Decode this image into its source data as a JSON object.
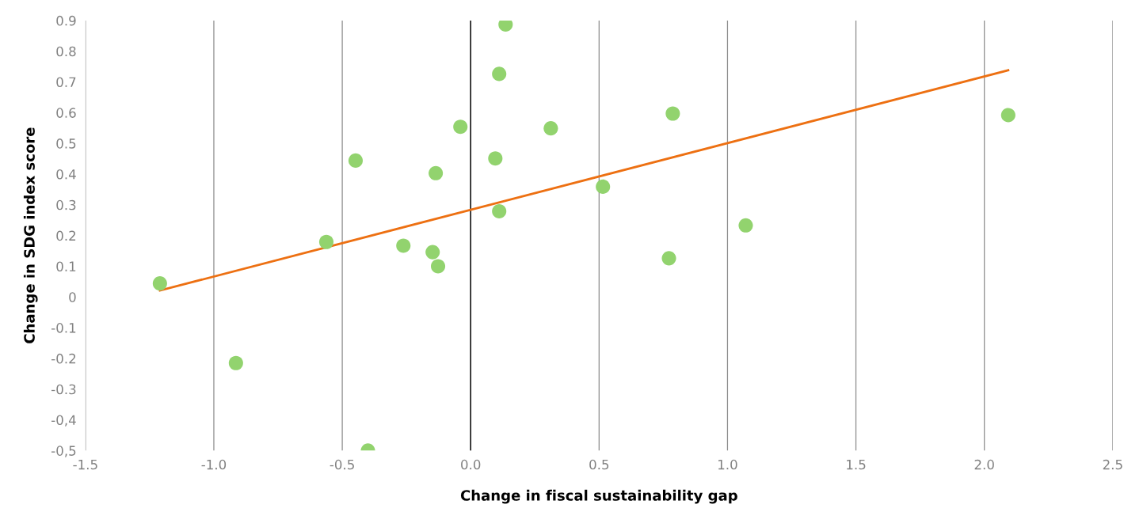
{
  "chart_data": {
    "type": "scatter",
    "xlabel": "Change in fiscal sustainability gap",
    "ylabel": "Change in SDG index score",
    "series": [
      {
        "marker": "circle",
        "color": "#92d36e",
        "x": [
          0.136,
          0.111,
          0.787,
          2.093,
          -0.04,
          0.312,
          -0.448,
          0.096,
          -0.136,
          0.515,
          0.111,
          1.071,
          -0.562,
          -0.262,
          -0.148,
          0.772,
          -0.127,
          -1.21,
          -0.914,
          -0.4
        ],
        "values": [
          0.887,
          0.726,
          0.597,
          0.592,
          0.554,
          0.549,
          0.444,
          0.451,
          0.403,
          0.359,
          0.279,
          0.233,
          0.179,
          0.167,
          0.146,
          0.126,
          0.1,
          0.044,
          -0.215,
          -0.5
        ]
      },
      {
        "type": "line",
        "color": "#ed7012",
        "x": [
          -1.21,
          2.093
        ],
        "values": [
          0.021,
          0.738
        ]
      }
    ],
    "xlim": [
      -1.5,
      2.5
    ],
    "xticks": [
      {
        "value": -1.5,
        "label": "-1.5"
      },
      {
        "value": -1.0,
        "label": "-1.0"
      },
      {
        "value": -0.5,
        "label": "-0.5"
      },
      {
        "value": 0,
        "label": "0.0"
      },
      {
        "value": 0.5,
        "label": "0.5"
      },
      {
        "value": 1.0,
        "label": "1.0"
      },
      {
        "value": 1.5,
        "label": "1.5"
      },
      {
        "value": 2.0,
        "label": "2.0"
      },
      {
        "value": 2.5,
        "label": "2.5"
      }
    ],
    "ylim": [
      -0.5,
      0.9
    ],
    "yticks": [
      {
        "value": -0.5,
        "label": "-0,5"
      },
      {
        "value": -0.4,
        "label": "-0,4"
      },
      {
        "value": -0.3,
        "label": "-0.3"
      },
      {
        "value": -0.2,
        "label": "-0.2"
      },
      {
        "value": -0.1,
        "label": "-0.1"
      },
      0,
      0.1,
      0.2,
      0.3,
      0.4,
      0.5,
      0.6,
      0.7,
      0.8,
      0.9
    ],
    "ref_lines": [
      {
        "axis": "x",
        "value": 0,
        "color": "#000000"
      }
    ],
    "grid": "x"
  }
}
